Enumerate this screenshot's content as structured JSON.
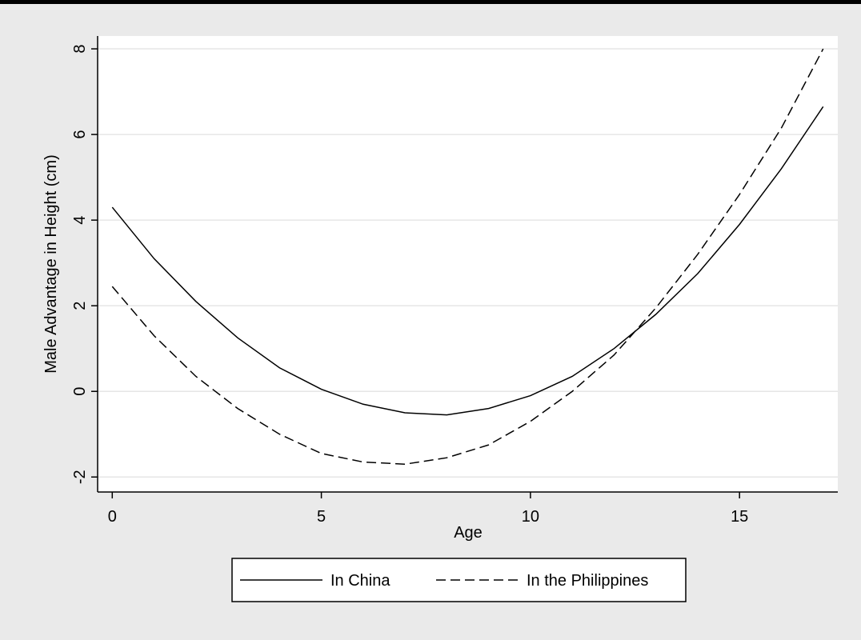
{
  "chart_data": {
    "type": "line",
    "x_label": "Age",
    "y_label": "Male Advantage in Height (cm)",
    "x": [
      0,
      1,
      2,
      3,
      4,
      5,
      6,
      7,
      8,
      9,
      10,
      11,
      12,
      13,
      14,
      15,
      16,
      17
    ],
    "series": [
      {
        "name": "In China",
        "color": "#000000",
        "line_style": "solid",
        "values": [
          4.3,
          3.1,
          2.1,
          1.25,
          0.55,
          0.05,
          -0.3,
          -0.5,
          -0.55,
          -0.4,
          -0.1,
          0.35,
          1.0,
          1.8,
          2.75,
          3.9,
          5.2,
          6.65
        ]
      },
      {
        "name": "In the Philippines",
        "color": "#000000",
        "line_style": "dashed",
        "values": [
          2.45,
          1.3,
          0.35,
          -0.4,
          -1.0,
          -1.45,
          -1.65,
          -1.7,
          -1.55,
          -1.25,
          -0.7,
          0.0,
          0.85,
          1.95,
          3.2,
          4.6,
          6.15,
          8.0
        ]
      }
    ],
    "xlim": [
      -0.35,
      17.35
    ],
    "ylim": [
      -2.35,
      8.3
    ],
    "xticks": [
      0,
      5,
      10,
      15
    ],
    "yticks": [
      -2,
      0,
      2,
      4,
      6,
      8
    ],
    "grid": true,
    "legend_position": "bottom"
  }
}
